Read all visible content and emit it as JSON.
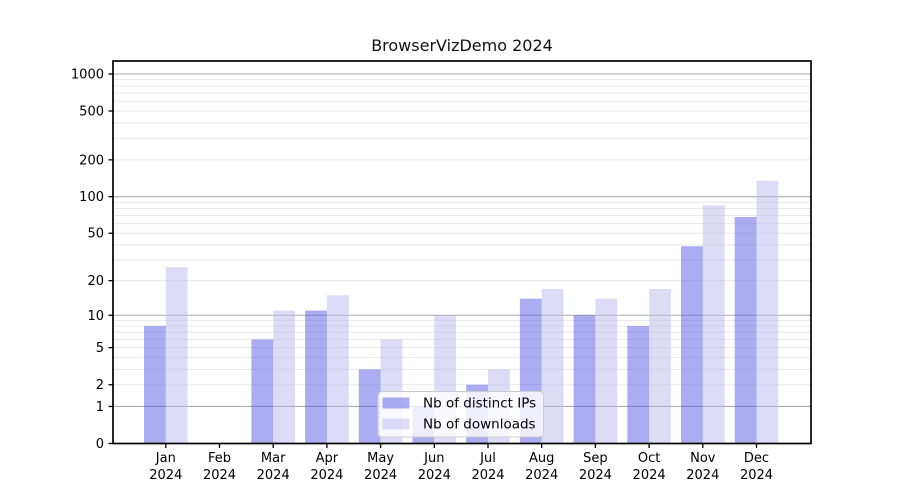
{
  "chart_data": {
    "type": "bar",
    "title": "BrowserVizDemo 2024",
    "categories": [
      "Jan 2024",
      "Feb 2024",
      "Mar 2024",
      "Apr 2024",
      "May 2024",
      "Jun 2024",
      "Jul 2024",
      "Aug 2024",
      "Sep 2024",
      "Oct 2024",
      "Nov 2024",
      "Dec 2024"
    ],
    "x_tick_line1": [
      "Jan",
      "Feb",
      "Mar",
      "Apr",
      "May",
      "Jun",
      "Jul",
      "Aug",
      "Sep",
      "Oct",
      "Nov",
      "Dec"
    ],
    "x_tick_line2": "2024",
    "series": [
      {
        "name": "Nb of distinct IPs",
        "color": "#5a5ae6",
        "fill_opacity": 0.5,
        "values": [
          8,
          0,
          6,
          11,
          3,
          1,
          2,
          14,
          10,
          8,
          39,
          68
        ]
      },
      {
        "name": "Nb of downloads",
        "color": "#b9b9f0",
        "fill_opacity": 0.5,
        "values": [
          26,
          0,
          11,
          15,
          6,
          10,
          3,
          17,
          14,
          17,
          85,
          135
        ]
      }
    ],
    "yscale": "symlog",
    "ylim": [
      0,
      1280
    ],
    "yticks": [
      0,
      1,
      2,
      5,
      10,
      20,
      50,
      100,
      200,
      500,
      1000
    ],
    "grid": true,
    "grid_major_ticks": [
      1,
      10,
      100,
      1000
    ],
    "legend_position": "inside lower center",
    "colors": {
      "axis": "#000000",
      "grid_major": "#ababab",
      "grid_minor": "#e8e8e8",
      "legend_border": "#cccccc",
      "legend_background": "rgba(255,255,255,0.8)"
    }
  }
}
